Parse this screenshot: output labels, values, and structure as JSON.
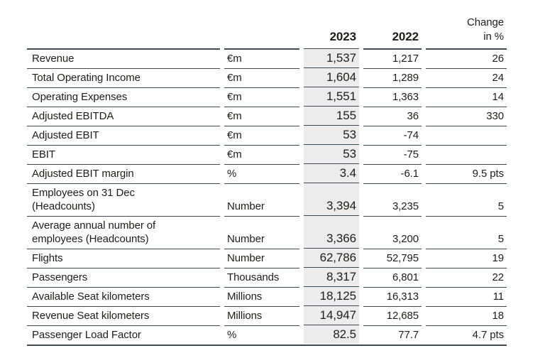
{
  "colors": {
    "line": "#3e4a54",
    "band": "#ececec",
    "text": "#1d1d1b"
  },
  "table": {
    "columns": {
      "year_current": "2023",
      "year_prior": "2022",
      "change_label": "Change\nin %"
    },
    "rows": [
      {
        "label": "Revenue",
        "unit": "€m",
        "v2023": "1,537",
        "v2022": "1,217",
        "change": "26"
      },
      {
        "label": "Total Operating Income",
        "unit": "€m",
        "v2023": "1,604",
        "v2022": "1,289",
        "change": "24"
      },
      {
        "label": "Operating Expenses",
        "unit": "€m",
        "v2023": "1,551",
        "v2022": "1,363",
        "change": "14"
      },
      {
        "label": "Adjusted EBITDA",
        "unit": "€m",
        "v2023": "155",
        "v2022": "36",
        "change": "330"
      },
      {
        "label": "Adjusted EBIT",
        "unit": "€m",
        "v2023": "53",
        "v2022": "-74",
        "change": ""
      },
      {
        "label": "EBIT",
        "unit": "€m",
        "v2023": "53",
        "v2022": "-75",
        "change": ""
      },
      {
        "label": "Adjusted EBIT margin",
        "unit": "%",
        "v2023": "3.4",
        "v2022": "-6.1",
        "change": "9.5 pts"
      },
      {
        "label": "Employees on 31 Dec\n(Headcounts)",
        "unit": "Number",
        "v2023": "3,394",
        "v2022": "3,235",
        "change": "5"
      },
      {
        "label": "Average annual number of\nemployees (Headcounts)",
        "unit": "Number",
        "v2023": "3,366",
        "v2022": "3,200",
        "change": "5"
      },
      {
        "label": "Flights",
        "unit": "Number",
        "v2023": "62,786",
        "v2022": "52,795",
        "change": "19"
      },
      {
        "label": "Passengers",
        "unit": "Thousands",
        "v2023": "8,317",
        "v2022": "6,801",
        "change": "22"
      },
      {
        "label": "Available Seat kilometers",
        "unit": "Millions",
        "v2023": "18,125",
        "v2022": "16,313",
        "change": "11"
      },
      {
        "label": "Revenue Seat kilometers",
        "unit": "Millions",
        "v2023": "14,947",
        "v2022": "12,685",
        "change": "18"
      },
      {
        "label": "Passenger Load Factor",
        "unit": "%",
        "v2023": "82.5",
        "v2022": "77.7",
        "change": "4.7 pts"
      }
    ]
  }
}
